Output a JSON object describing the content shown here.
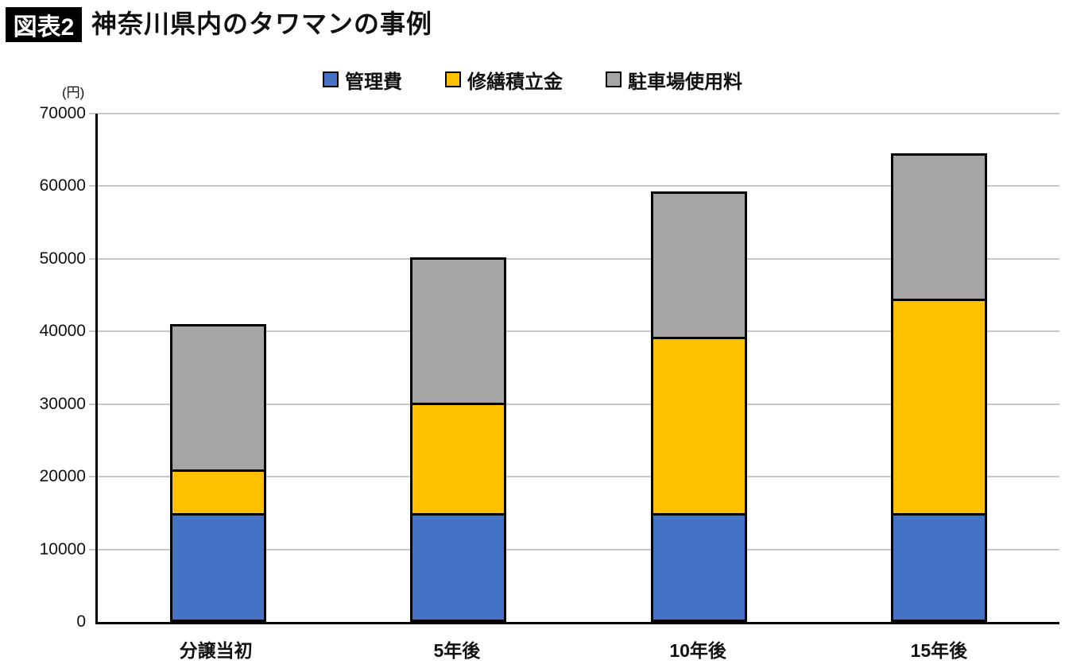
{
  "header": {
    "badge": "図表2",
    "title": "神奈川県内のタワマンの事例"
  },
  "chart_data": {
    "type": "bar",
    "stacked": true,
    "title": "神奈川県内のタワマンの事例",
    "unit_label": "(円)",
    "categories": [
      "分譲当初",
      "5年後",
      "10年後",
      "15年後"
    ],
    "series": [
      {
        "name": "管理費",
        "color": "#4472C4",
        "values": [
          15000,
          15000,
          15000,
          15000
        ]
      },
      {
        "name": "修繕積立金",
        "color": "#FFC000",
        "values": [
          6000,
          15200,
          24300,
          29500
        ]
      },
      {
        "name": "駐車場使用料",
        "color": "#A5A5A5",
        "values": [
          20000,
          20000,
          20000,
          20000
        ]
      }
    ],
    "totals": [
      41000,
      50200,
      59300,
      64500
    ],
    "ylim": [
      0,
      70000
    ],
    "ytick_interval": 10000,
    "yticks": [
      "0",
      "10000",
      "20000",
      "30000",
      "40000",
      "50000",
      "60000",
      "70000"
    ],
    "grid": "horizontal-gridlines-on",
    "legend_position": "top-center"
  },
  "colors": {
    "bar_border": "#000000",
    "axis": "#000000",
    "gridline": "#C8C8C8",
    "badge_bg": "#000000",
    "badge_fg": "#FFFFFF",
    "text": "#111111"
  }
}
